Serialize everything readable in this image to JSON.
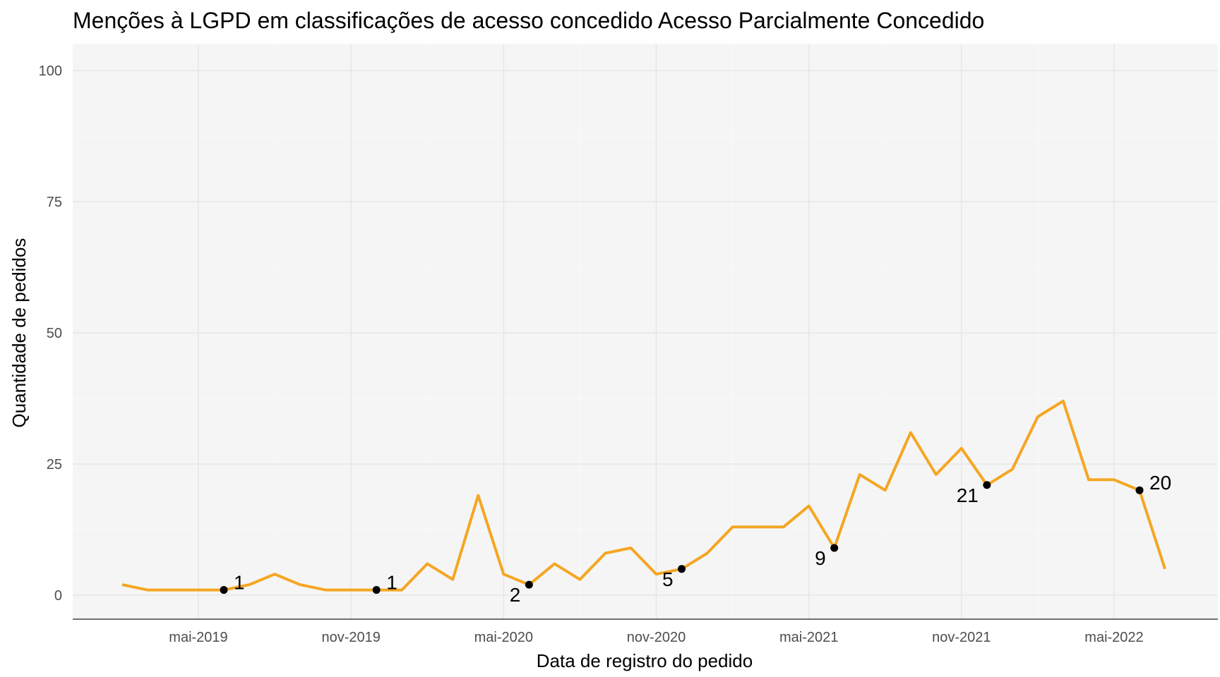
{
  "chart_data": {
    "type": "line",
    "title": "Menções à LGPD em classificações de acesso concedido Acesso Parcialmente Concedido",
    "xlabel": "Data de registro do pedido",
    "ylabel": "Quantidade de pedidos",
    "ylim": [
      0,
      100
    ],
    "y_ticks": [
      0,
      25,
      50,
      75,
      100
    ],
    "x_ticks": [
      {
        "date": "2019-05",
        "label": "mai-2019"
      },
      {
        "date": "2019-11",
        "label": "nov-2019"
      },
      {
        "date": "2020-05",
        "label": "mai-2020"
      },
      {
        "date": "2020-11",
        "label": "nov-2020"
      },
      {
        "date": "2021-05",
        "label": "mai-2021"
      },
      {
        "date": "2021-11",
        "label": "nov-2021"
      },
      {
        "date": "2022-05",
        "label": "mai-2022"
      }
    ],
    "x_range": [
      "2019-01",
      "2022-09"
    ],
    "grid": true,
    "line_color": "#F5A623",
    "panel_color": "#F5F5F5",
    "series": [
      {
        "x": [
          "2019-02",
          "2019-03",
          "2019-04",
          "2019-05",
          "2019-06",
          "2019-07",
          "2019-08",
          "2019-09",
          "2019-10",
          "2019-11",
          "2019-12",
          "2020-01",
          "2020-02",
          "2020-03",
          "2020-04",
          "2020-05",
          "2020-06",
          "2020-07",
          "2020-08",
          "2020-09",
          "2020-10",
          "2020-11",
          "2020-12",
          "2021-01",
          "2021-02",
          "2021-03",
          "2021-04",
          "2021-05",
          "2021-06",
          "2021-07",
          "2021-08",
          "2021-09",
          "2021-10",
          "2021-11",
          "2021-12",
          "2022-01",
          "2022-02",
          "2022-03",
          "2022-04",
          "2022-05",
          "2022-06",
          "2022-07"
        ],
        "y": [
          2,
          1,
          1,
          1,
          1,
          2,
          4,
          2,
          1,
          1,
          1,
          1,
          6,
          3,
          19,
          4,
          2,
          6,
          3,
          8,
          9,
          4,
          5,
          8,
          13,
          13,
          13,
          17,
          9,
          23,
          20,
          31,
          23,
          28,
          21,
          24,
          34,
          37,
          22,
          22,
          20,
          5
        ]
      }
    ],
    "annotations": [
      {
        "x": "2019-06",
        "y": 1,
        "label": "1",
        "pos": "right"
      },
      {
        "x": "2019-12",
        "y": 1,
        "label": "1",
        "pos": "right"
      },
      {
        "x": "2020-06",
        "y": 2,
        "label": "2",
        "pos": "left"
      },
      {
        "x": "2020-12",
        "y": 5,
        "label": "5",
        "pos": "left"
      },
      {
        "x": "2021-06",
        "y": 9,
        "label": "9",
        "pos": "left"
      },
      {
        "x": "2021-12",
        "y": 21,
        "label": "21",
        "pos": "left"
      },
      {
        "x": "2022-06",
        "y": 20,
        "label": "20",
        "pos": "right"
      }
    ]
  }
}
